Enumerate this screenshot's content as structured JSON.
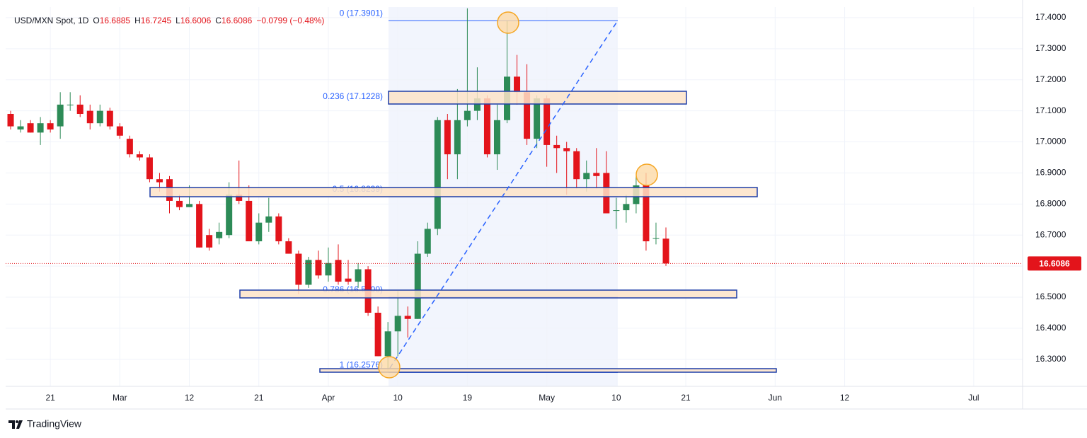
{
  "header": {
    "symbol": "USD/MXN Spot, 1D",
    "o_label": "O",
    "open": "16.6885",
    "h_label": "H",
    "high": "16.7245",
    "l_label": "L",
    "low": "16.6006",
    "c_label": "C",
    "close": "16.6086",
    "change": "−0.0799 (−0.48%)"
  },
  "footer": {
    "brand": "TradingView"
  },
  "chart_data": {
    "type": "candlestick",
    "up_color": "#2d8b57",
    "down_color": "#e3141b",
    "categories": [
      null,
      null,
      null,
      null,
      "21",
      null,
      null,
      null,
      null,
      null,
      null,
      "Mar",
      null,
      null,
      null,
      null,
      null,
      null,
      "12",
      null,
      null,
      null,
      null,
      null,
      null,
      "21",
      null,
      null,
      null,
      null,
      null,
      null,
      "Apr",
      null,
      null,
      null,
      null,
      null,
      null,
      "10",
      null,
      null,
      null,
      null,
      null,
      null,
      "19",
      null,
      null,
      null,
      null,
      null,
      null,
      null,
      "May",
      null,
      null,
      null,
      null,
      null,
      null,
      "10",
      null,
      null,
      null,
      null,
      null,
      null,
      "21",
      null,
      null,
      null,
      null,
      null,
      null,
      null,
      null,
      "Jun",
      null,
      null,
      null,
      null,
      null,
      null,
      "12",
      null,
      null,
      null,
      null,
      null,
      null,
      null,
      null,
      null,
      null,
      null,
      null,
      "Jul",
      null,
      null,
      null,
      null
    ],
    "open": [
      17.09,
      17.04,
      17.06,
      17.03,
      17.06,
      17.05,
      17.12,
      17.12,
      17.1,
      17.06,
      17.1,
      17.05,
      17.01,
      16.96,
      16.95,
      16.88,
      16.88,
      16.81,
      16.79,
      16.8,
      16.7,
      16.69,
      16.7,
      16.83,
      16.81,
      16.68,
      16.74,
      16.76,
      16.68,
      16.64,
      16.54,
      16.62,
      16.57,
      16.62,
      16.56,
      16.55,
      16.59,
      16.45,
      16.31,
      16.39,
      16.44,
      16.43,
      16.64,
      16.72,
      17.07,
      16.96,
      17.07,
      17.1,
      17.14,
      16.96,
      17.07,
      17.21,
      17.16,
      17.01,
      17.14,
      16.99,
      16.98,
      16.97,
      16.88,
      16.9,
      16.9,
      16.78,
      16.78,
      16.8,
      16.86,
      16.69,
      16.6885,
      null,
      null,
      null,
      null,
      null,
      null,
      null,
      null,
      null,
      null,
      null,
      null,
      null,
      null,
      null,
      null,
      null,
      null,
      null,
      null,
      null,
      null,
      null,
      null,
      null,
      null,
      null,
      null,
      null,
      null,
      null,
      null,
      null,
      null,
      null
    ],
    "high": [
      17.1,
      17.07,
      17.07,
      17.08,
      17.07,
      17.16,
      17.16,
      17.15,
      17.12,
      17.12,
      17.11,
      17.06,
      17.02,
      16.97,
      16.96,
      16.9,
      16.89,
      16.83,
      16.86,
      16.81,
      16.72,
      16.74,
      16.87,
      16.94,
      16.86,
      16.77,
      16.82,
      16.77,
      16.69,
      16.65,
      16.63,
      16.65,
      16.66,
      16.67,
      16.62,
      16.61,
      16.6,
      16.47,
      16.42,
      16.52,
      16.47,
      16.68,
      16.74,
      17.08,
      17.09,
      17.17,
      17.43,
      17.24,
      17.15,
      17.12,
      17.39,
      17.28,
      17.25,
      17.15,
      17.15,
      17.02,
      17.0,
      16.98,
      16.94,
      16.98,
      16.97,
      16.82,
      16.83,
      16.89,
      16.9,
      16.74,
      16.7245,
      null,
      null,
      null,
      null,
      null,
      null,
      null,
      null,
      null,
      null,
      null,
      null,
      null,
      null,
      null,
      null,
      null,
      null,
      null,
      null,
      null,
      null,
      null,
      null,
      null,
      null,
      null,
      null,
      null,
      null,
      null,
      null,
      null,
      null,
      null
    ],
    "low": [
      17.04,
      17.03,
      17.03,
      16.99,
      17.03,
      17.01,
      17.1,
      17.08,
      17.04,
      17.05,
      17.04,
      17.01,
      16.95,
      16.94,
      16.87,
      16.84,
      16.77,
      16.78,
      16.79,
      16.66,
      16.65,
      16.67,
      16.69,
      16.8,
      16.68,
      16.67,
      16.71,
      16.67,
      16.64,
      16.51,
      16.53,
      16.56,
      16.55,
      16.54,
      16.54,
      16.53,
      16.44,
      16.31,
      16.26,
      16.31,
      16.37,
      16.43,
      16.63,
      16.7,
      16.88,
      16.88,
      17.05,
      17.07,
      16.95,
      16.91,
      17.06,
      17.12,
      16.99,
      16.98,
      16.92,
      16.9,
      16.83,
      16.85,
      16.84,
      16.85,
      16.77,
      16.72,
      16.74,
      16.77,
      16.65,
      16.67,
      16.6006,
      null,
      null,
      null,
      null,
      null,
      null,
      null,
      null,
      null,
      null,
      null,
      null,
      null,
      null,
      null,
      null,
      null,
      null,
      null,
      null,
      null,
      null,
      null,
      null,
      null,
      null,
      null,
      null,
      null,
      null,
      null,
      null,
      null,
      null,
      null
    ],
    "close": [
      17.05,
      17.05,
      17.03,
      17.06,
      17.04,
      17.12,
      17.12,
      17.09,
      17.06,
      17.1,
      17.05,
      17.02,
      16.96,
      16.95,
      16.88,
      16.87,
      16.81,
      16.79,
      16.8,
      16.66,
      16.66,
      16.71,
      16.83,
      16.81,
      16.68,
      16.74,
      16.76,
      16.68,
      16.64,
      16.54,
      16.62,
      16.57,
      16.61,
      16.55,
      16.55,
      16.59,
      16.45,
      16.31,
      16.39,
      16.44,
      16.43,
      16.64,
      16.72,
      17.07,
      16.96,
      17.07,
      17.1,
      17.14,
      16.96,
      17.07,
      17.21,
      17.16,
      17.01,
      17.14,
      16.99,
      16.98,
      16.97,
      16.88,
      16.9,
      16.89,
      16.77,
      16.78,
      16.8,
      16.86,
      16.68,
      16.69,
      16.6086,
      null,
      null,
      null,
      null,
      null,
      null,
      null,
      null,
      null,
      null,
      null,
      null,
      null,
      null,
      null,
      null,
      null,
      null,
      null,
      null,
      null,
      null,
      null,
      null,
      null,
      null,
      null,
      null,
      null,
      null,
      null,
      null,
      null,
      null,
      null
    ],
    "ylim": [
      16.213,
      17.434
    ],
    "yticks": [
      {
        "value": 16.3,
        "label": "16.3000"
      },
      {
        "value": 16.4,
        "label": "16.4000"
      },
      {
        "value": 16.5,
        "label": "16.5000"
      },
      {
        "value": 16.6,
        "label": "16.6000"
      },
      {
        "value": 16.7,
        "label": "16.7000"
      },
      {
        "value": 16.8,
        "label": "16.8000"
      },
      {
        "value": 16.9,
        "label": "16.9000"
      },
      {
        "value": 17.0,
        "label": "17.0000"
      },
      {
        "value": 17.1,
        "label": "17.1000"
      },
      {
        "value": 17.2,
        "label": "17.2000"
      },
      {
        "value": 17.3,
        "label": "17.3000"
      },
      {
        "value": 17.4,
        "label": "17.4000"
      }
    ],
    "grid": true,
    "last_price": 16.6086,
    "fib_levels": [
      {
        "label": "0 (17.3901)",
        "value": 17.3901
      },
      {
        "label": "0.236 (17.1228)",
        "value": 17.1228
      },
      {
        "label": "0.5 (16.8239)",
        "value": 16.8239
      },
      {
        "label": "0.786 (16.5000)",
        "value": 16.5
      },
      {
        "label": "1 (16.2576)",
        "value": 16.2576
      }
    ]
  }
}
